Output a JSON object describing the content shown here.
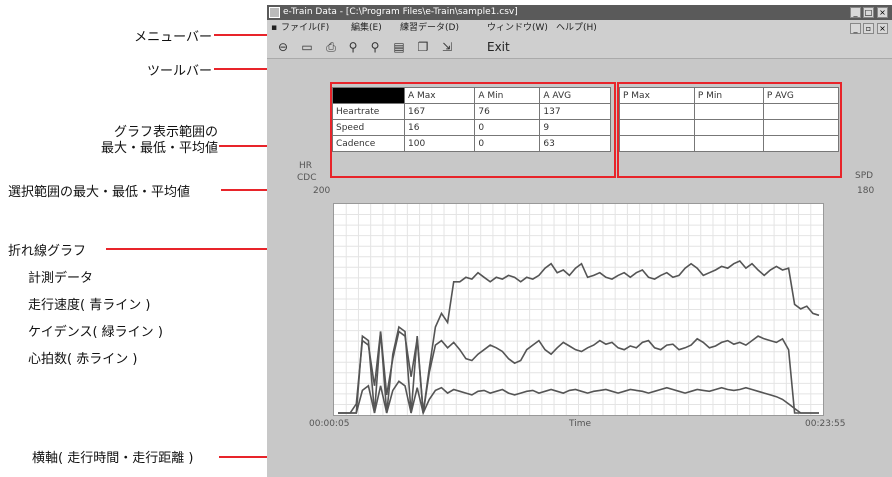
{
  "annotations": {
    "menubar": "メニューバー",
    "toolbar": "ツールバー",
    "graph_range_line1": "グラフ表示範囲の",
    "graph_range_line2": "最大・最低・平均値",
    "selected_range": "選択範囲の最大・最低・平均値",
    "line_graph": "折れ線グラフ",
    "measure_data": "計測データ",
    "speed": "走行速度( 青ライン )",
    "cadence": "ケイデンス( 緑ライン )",
    "heartrate": "心拍数( 赤ライン )",
    "x_axis": "横軸( 走行時間・走行距離 )"
  },
  "window": {
    "title": "e-Train Data - [C:\\Program Files\\e-Train\\sample1.csv]",
    "menu": [
      "ファイル(F)",
      "編集(E)",
      "練習データ(D)",
      "ウィンドウ(W)",
      "ヘルプ(H)"
    ],
    "toolbar_exit": "Exit"
  },
  "table_a": {
    "headers": [
      "",
      "A Max",
      "A Min",
      "A AVG"
    ],
    "rows": [
      {
        "label": "Heartrate",
        "max": "167",
        "min": "76",
        "avg": "137"
      },
      {
        "label": "Speed",
        "max": "16",
        "min": "0",
        "avg": "9"
      },
      {
        "label": "Cadence",
        "max": "100",
        "min": "0",
        "avg": "63"
      }
    ]
  },
  "table_p": {
    "headers": [
      "P Max",
      "P Min",
      "P AVG"
    ]
  },
  "chart_labels": {
    "left_top": "HR",
    "left_mid": "CDC",
    "left_max": "200",
    "right_top": "SPD",
    "right_max": "180",
    "x_start": "00:00:05",
    "x_mid": "Time",
    "x_end": "00:23:55"
  },
  "chart_data": {
    "type": "line",
    "x": [
      0,
      1,
      2,
      3,
      4,
      5,
      6,
      7,
      8,
      9,
      10,
      11,
      12,
      13,
      14,
      15,
      16,
      17,
      18,
      19,
      20,
      21,
      22,
      23,
      24,
      25,
      26,
      27,
      28,
      29,
      30,
      31,
      32,
      33,
      34,
      35,
      36,
      37,
      38,
      39,
      40,
      41,
      42,
      43,
      44,
      45,
      46,
      47,
      48,
      49,
      50,
      51,
      52,
      53,
      54,
      55,
      56,
      57,
      58,
      59,
      60,
      61,
      62,
      63,
      64,
      65,
      66,
      67,
      68,
      69,
      70,
      71,
      72,
      73,
      74,
      75,
      76,
      77,
      78,
      79
    ],
    "series": [
      {
        "color": "#555555",
        "values": [
          0,
          0,
          0,
          10,
          80,
          75,
          30,
          90,
          20,
          60,
          90,
          85,
          40,
          82,
          0,
          50,
          95,
          110,
          100,
          145,
          145,
          150,
          148,
          155,
          150,
          145,
          150,
          148,
          152,
          150,
          145,
          150,
          148,
          152,
          160,
          165,
          155,
          158,
          152,
          160,
          165,
          150,
          152,
          155,
          150,
          148,
          152,
          155,
          150,
          155,
          158,
          150,
          148,
          152,
          155,
          150,
          152,
          160,
          165,
          160,
          152,
          155,
          158,
          162,
          160,
          165,
          168,
          160,
          165,
          158,
          152,
          158,
          162,
          158,
          160,
          120,
          115,
          118,
          110,
          108
        ]
      },
      {
        "color": "#555555",
        "values": [
          0,
          0,
          0,
          0,
          85,
          80,
          0,
          90,
          0,
          65,
          95,
          90,
          0,
          85,
          0,
          45,
          75,
          80,
          72,
          78,
          70,
          60,
          58,
          65,
          70,
          75,
          72,
          68,
          60,
          55,
          58,
          70,
          75,
          80,
          70,
          65,
          72,
          78,
          74,
          70,
          68,
          72,
          75,
          80,
          76,
          78,
          72,
          70,
          74,
          72,
          78,
          80,
          72,
          70,
          75,
          76,
          70,
          72,
          75,
          82,
          78,
          72,
          74,
          78,
          80,
          76,
          78,
          75,
          80,
          85,
          82,
          80,
          78,
          82,
          70,
          0,
          0,
          0,
          0,
          0
        ]
      },
      {
        "color": "#555555",
        "values": [
          0,
          0,
          0,
          0,
          25,
          30,
          0,
          30,
          0,
          25,
          35,
          30,
          0,
          28,
          0,
          15,
          25,
          28,
          22,
          26,
          24,
          22,
          20,
          24,
          25,
          22,
          24,
          26,
          22,
          20,
          22,
          24,
          25,
          22,
          24,
          26,
          24,
          22,
          25,
          26,
          24,
          22,
          24,
          25,
          26,
          24,
          22,
          24,
          26,
          25,
          24,
          22,
          24,
          26,
          28,
          26,
          24,
          22,
          24,
          26,
          25,
          24,
          26,
          28,
          26,
          25,
          26,
          28,
          26,
          24,
          22,
          20,
          18,
          15,
          10,
          5,
          0,
          0,
          0,
          0
        ]
      }
    ],
    "xlabel": "Time",
    "ylim": [
      0,
      200
    ],
    "grid": true
  }
}
